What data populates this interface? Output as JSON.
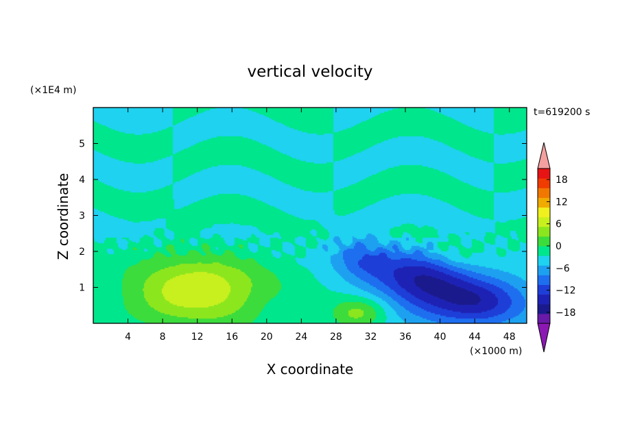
{
  "chart_data": {
    "type": "heatmap",
    "title": "vertical velocity",
    "xlabel": "X coordinate",
    "ylabel": "Z coordinate",
    "x_unit": "(×1000 m)",
    "y_unit": "(×1E4 m)",
    "time_label": "t=619200 s",
    "xlim": [
      0,
      50
    ],
    "ylim": [
      0,
      6
    ],
    "x_ticks": [
      4,
      8,
      12,
      16,
      20,
      24,
      28,
      32,
      36,
      40,
      44,
      48
    ],
    "y_ticks": [
      1,
      2,
      3,
      4,
      5
    ],
    "colorbar": {
      "tick_labels": [
        "18",
        "12",
        "6",
        "0",
        "−6",
        "−12",
        "−18"
      ],
      "tick_values": [
        18,
        12,
        6,
        0,
        -6,
        -12,
        -18
      ],
      "levels": [
        -21,
        -18,
        -15,
        -12,
        -9,
        -6,
        -3,
        0,
        3,
        6,
        9,
        12,
        15,
        18,
        21
      ],
      "colors": [
        "#6a1aa8",
        "#1a1a8c",
        "#1e22b4",
        "#1e3ed8",
        "#1e6ef0",
        "#1ea0f0",
        "#1ed2f0",
        "#00e68c",
        "#3cdc3c",
        "#8ce61e",
        "#c8f01e",
        "#f0f01e",
        "#f0aa00",
        "#f07800",
        "#f03c00",
        "#e61414"
      ],
      "over_color": "#f4a0a0",
      "under_color": "#8c18b4"
    },
    "features": [
      {
        "name": "updraft",
        "x": 12,
        "z": 0.9,
        "peak": 12
      },
      {
        "name": "updraft",
        "x": 30.5,
        "z": 0.3,
        "peak": 7
      },
      {
        "name": "updraft",
        "x": 41.5,
        "z": 1.9,
        "peak": 3
      },
      {
        "name": "downdraft",
        "x": 44,
        "z": 0.6,
        "peak": -14
      },
      {
        "name": "downdraft",
        "x": 37.5,
        "z": 1.25,
        "peak": -13
      },
      {
        "name": "downdraft",
        "x": 31,
        "z": 1.8,
        "peak": -8
      }
    ]
  }
}
